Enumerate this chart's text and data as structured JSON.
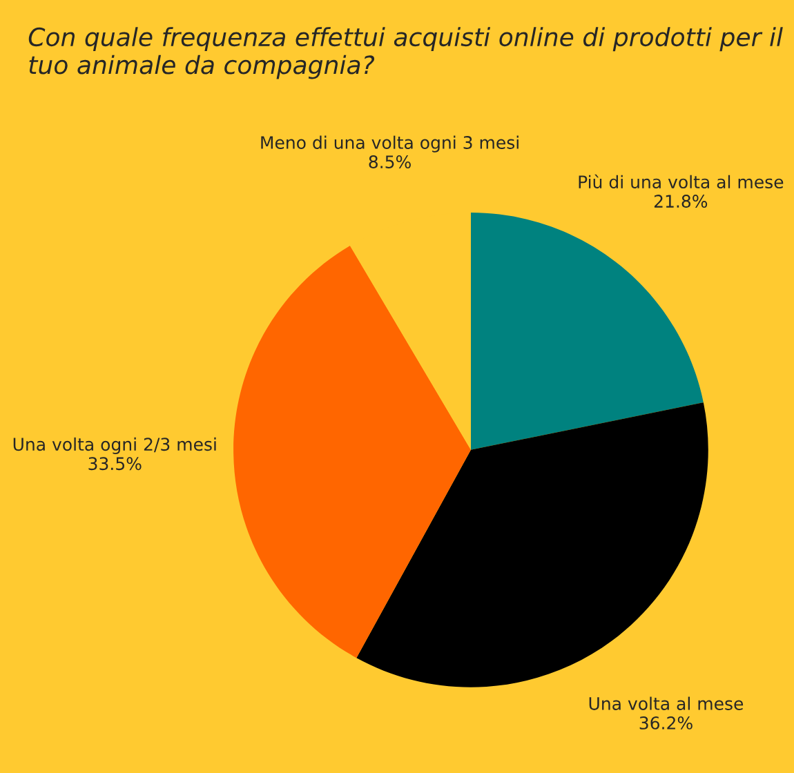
{
  "chart_data": {
    "type": "pie",
    "title": "Con quale frequenza effettui acquisti online di prodotti per il tuo animale da compagnia?",
    "categories": [
      "Più di una volta al mese",
      "Una volta al mese",
      "Una volta ogni 2/3 mesi",
      "Meno di una volta ogni 3 mesi"
    ],
    "values": [
      21.8,
      36.2,
      33.5,
      8.5
    ],
    "colors": [
      "#00827f",
      "#000000",
      "#ff6600",
      "#ffca30"
    ],
    "value_labels": [
      "21.8%",
      "36.2%",
      "33.5%",
      "8.5%"
    ],
    "legend": false
  }
}
